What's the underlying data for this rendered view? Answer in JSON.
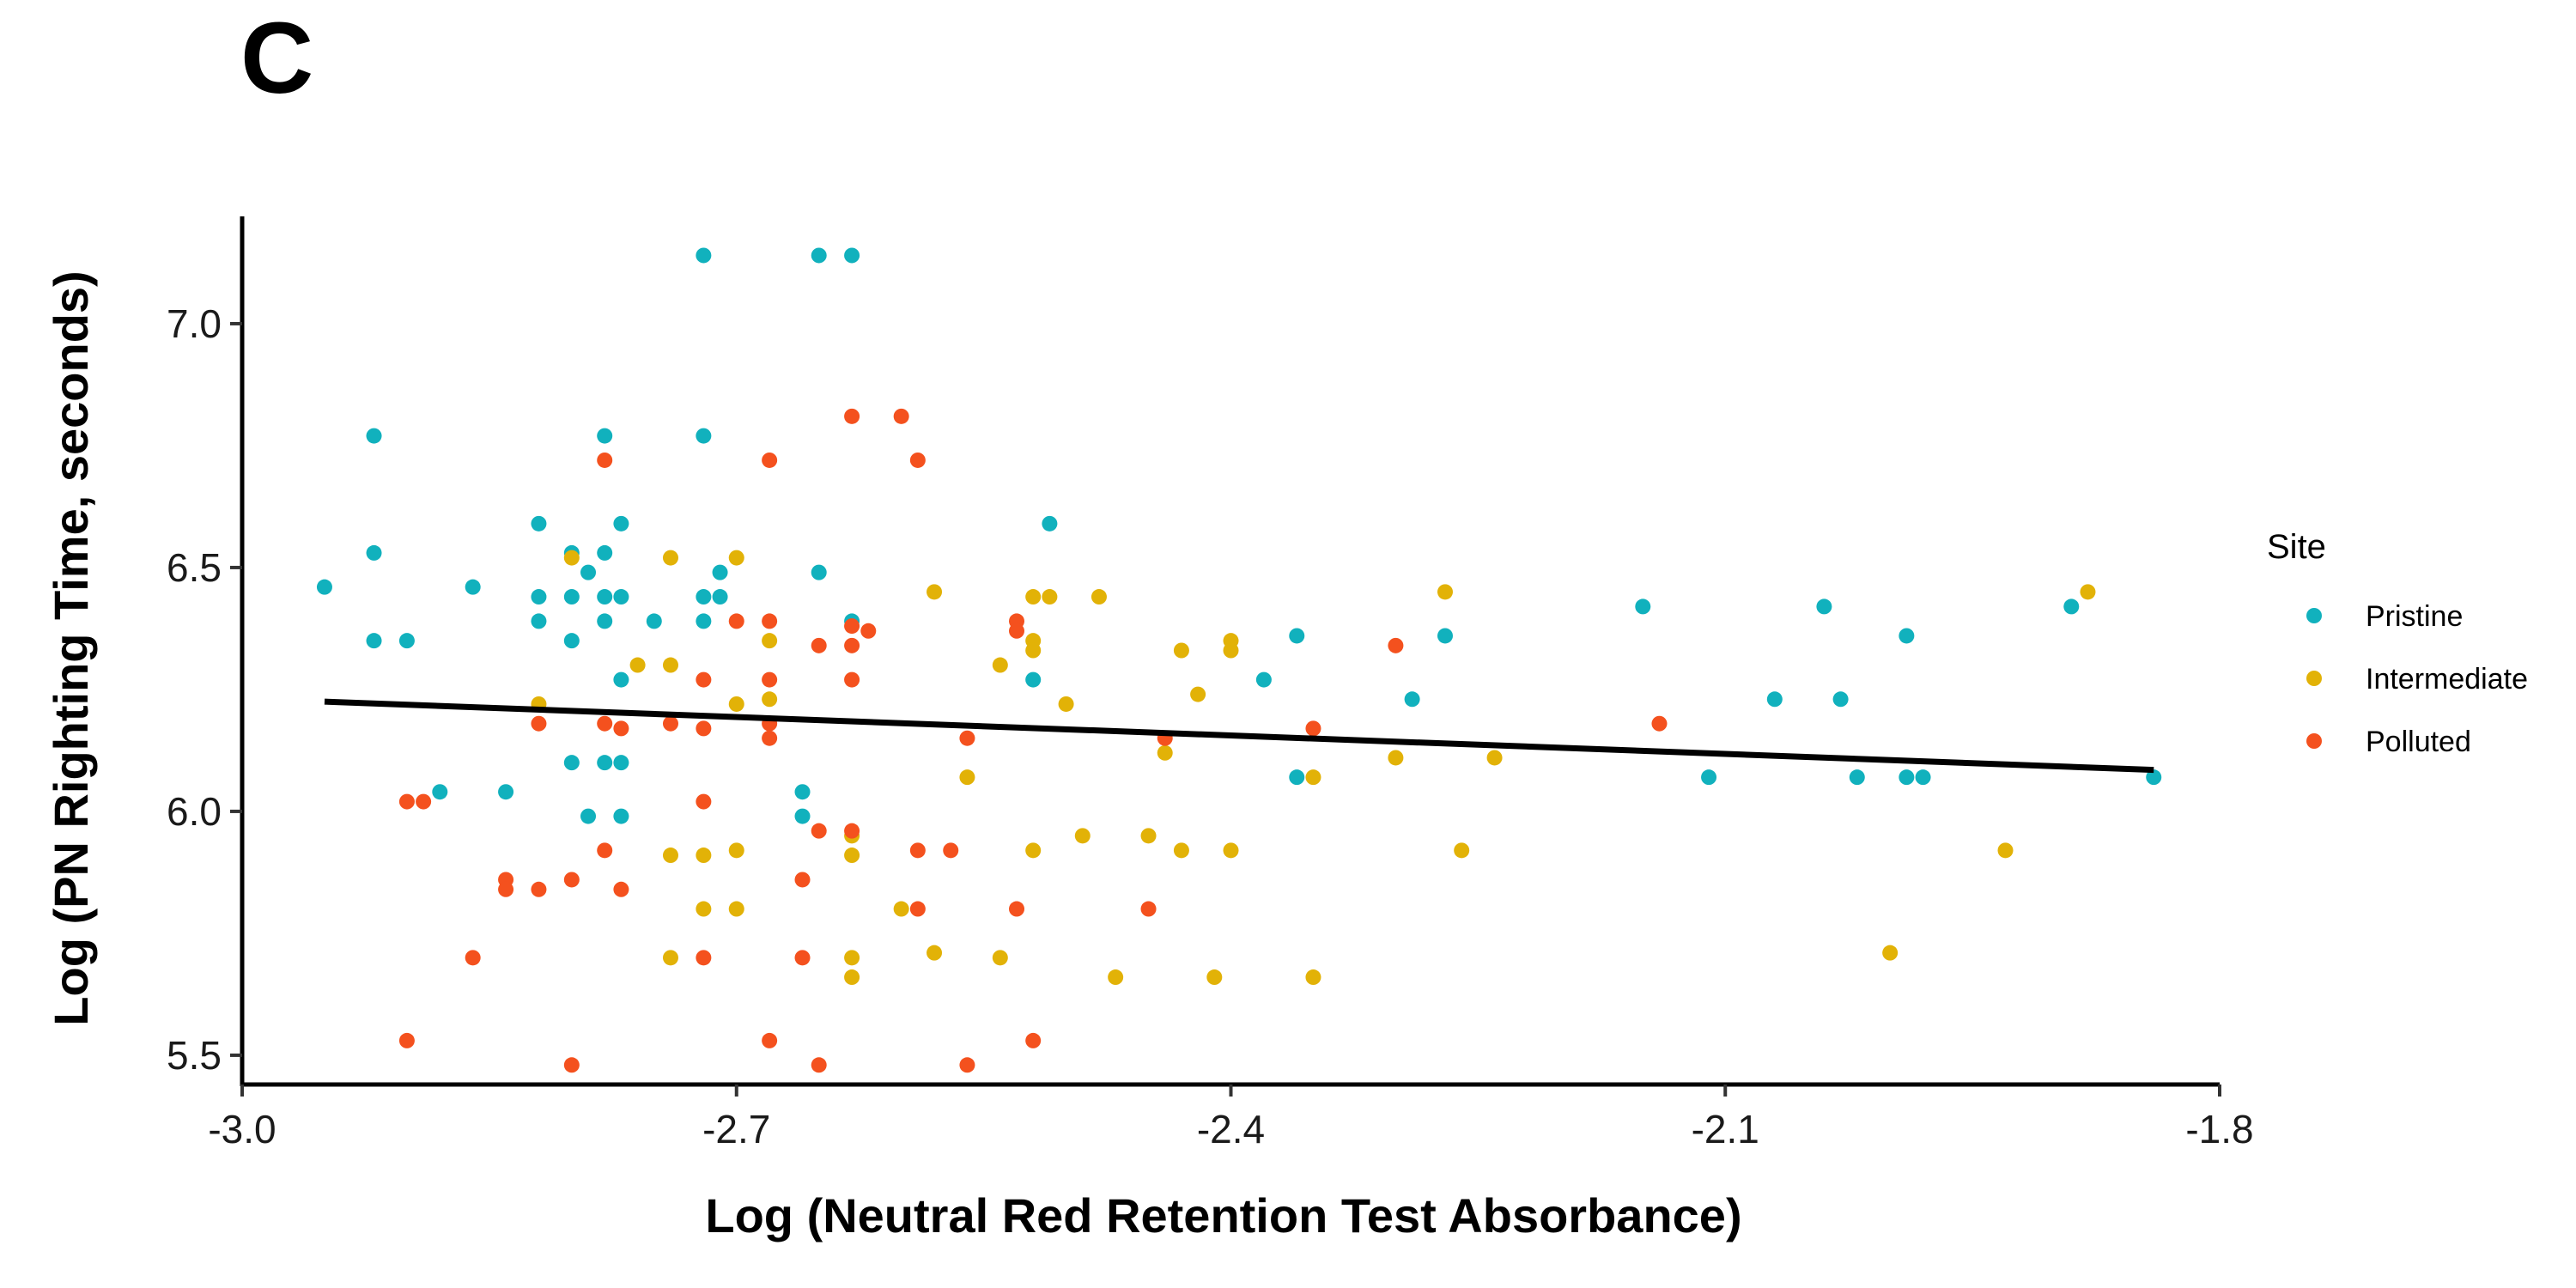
{
  "panel_label": "C",
  "chart_data": {
    "type": "scatter",
    "xlabel": "Log (Neutral Red Retention Test Absorbance)",
    "ylabel": "Log (PN Righting Time, seconds)",
    "xlim": [
      -3.0,
      -1.8
    ],
    "ylim": [
      5.44,
      7.22
    ],
    "x_ticks": [
      -3.0,
      -2.7,
      -2.4,
      -2.1,
      -1.8
    ],
    "x_tick_labels": [
      "-3.0",
      "-2.7",
      "-2.4",
      "-2.1",
      "-1.8"
    ],
    "y_ticks": [
      5.5,
      6.0,
      6.5,
      7.0
    ],
    "y_tick_labels": [
      "5.5",
      "6.0",
      "6.5",
      "7.0"
    ],
    "grid": false,
    "legend": {
      "title": "Site",
      "position": "right"
    },
    "series": [
      {
        "name": "Pristine",
        "color": "#11B1BD",
        "points": [
          [
            -2.95,
            6.46
          ],
          [
            -2.92,
            6.77
          ],
          [
            -2.92,
            6.53
          ],
          [
            -2.92,
            6.35
          ],
          [
            -2.9,
            6.35
          ],
          [
            -2.88,
            6.04
          ],
          [
            -2.86,
            6.46
          ],
          [
            -2.84,
            6.04
          ],
          [
            -2.82,
            6.59
          ],
          [
            -2.82,
            6.44
          ],
          [
            -2.82,
            6.39
          ],
          [
            -2.8,
            6.53
          ],
          [
            -2.8,
            6.44
          ],
          [
            -2.8,
            6.35
          ],
          [
            -2.8,
            6.1
          ],
          [
            -2.79,
            6.49
          ],
          [
            -2.79,
            5.99
          ],
          [
            -2.78,
            6.77
          ],
          [
            -2.78,
            6.53
          ],
          [
            -2.78,
            6.44
          ],
          [
            -2.78,
            6.39
          ],
          [
            -2.78,
            6.1
          ],
          [
            -2.77,
            6.59
          ],
          [
            -2.77,
            6.44
          ],
          [
            -2.77,
            6.27
          ],
          [
            -2.77,
            6.1
          ],
          [
            -2.77,
            5.99
          ],
          [
            -2.75,
            6.39
          ],
          [
            -2.72,
            7.14
          ],
          [
            -2.72,
            6.77
          ],
          [
            -2.72,
            6.44
          ],
          [
            -2.72,
            6.39
          ],
          [
            -2.71,
            6.49
          ],
          [
            -2.71,
            6.44
          ],
          [
            -2.66,
            6.04
          ],
          [
            -2.66,
            5.99
          ],
          [
            -2.65,
            7.14
          ],
          [
            -2.65,
            6.49
          ],
          [
            -2.63,
            7.14
          ],
          [
            -2.63,
            6.39
          ],
          [
            -2.52,
            6.27
          ],
          [
            -2.51,
            6.59
          ],
          [
            -2.38,
            6.27
          ],
          [
            -2.36,
            6.36
          ],
          [
            -2.36,
            6.07
          ],
          [
            -2.29,
            6.23
          ],
          [
            -2.27,
            6.36
          ],
          [
            -2.15,
            6.42
          ],
          [
            -2.11,
            6.07
          ],
          [
            -2.07,
            6.23
          ],
          [
            -2.04,
            6.42
          ],
          [
            -2.03,
            6.23
          ],
          [
            -2.02,
            6.07
          ],
          [
            -1.99,
            6.36
          ],
          [
            -1.99,
            6.07
          ],
          [
            -1.98,
            6.07
          ],
          [
            -1.89,
            6.42
          ],
          [
            -1.84,
            6.07
          ]
        ]
      },
      {
        "name": "Intermediate",
        "color": "#E2B207",
        "points": [
          [
            -2.82,
            6.22
          ],
          [
            -2.8,
            6.52
          ],
          [
            -2.76,
            6.3
          ],
          [
            -2.74,
            6.52
          ],
          [
            -2.74,
            6.3
          ],
          [
            -2.74,
            5.91
          ],
          [
            -2.74,
            5.7
          ],
          [
            -2.72,
            5.91
          ],
          [
            -2.72,
            5.8
          ],
          [
            -2.7,
            6.52
          ],
          [
            -2.7,
            6.22
          ],
          [
            -2.7,
            5.92
          ],
          [
            -2.7,
            5.8
          ],
          [
            -2.68,
            6.35
          ],
          [
            -2.68,
            6.23
          ],
          [
            -2.63,
            5.95
          ],
          [
            -2.63,
            5.91
          ],
          [
            -2.63,
            5.7
          ],
          [
            -2.63,
            5.66
          ],
          [
            -2.6,
            5.8
          ],
          [
            -2.58,
            6.45
          ],
          [
            -2.58,
            5.71
          ],
          [
            -2.56,
            6.07
          ],
          [
            -2.54,
            6.3
          ],
          [
            -2.54,
            5.7
          ],
          [
            -2.52,
            6.44
          ],
          [
            -2.52,
            6.35
          ],
          [
            -2.52,
            6.33
          ],
          [
            -2.52,
            5.92
          ],
          [
            -2.51,
            6.44
          ],
          [
            -2.5,
            6.22
          ],
          [
            -2.49,
            5.95
          ],
          [
            -2.48,
            6.44
          ],
          [
            -2.47,
            5.66
          ],
          [
            -2.45,
            5.95
          ],
          [
            -2.44,
            6.12
          ],
          [
            -2.43,
            6.33
          ],
          [
            -2.43,
            5.92
          ],
          [
            -2.42,
            6.24
          ],
          [
            -2.41,
            5.66
          ],
          [
            -2.4,
            6.35
          ],
          [
            -2.4,
            6.33
          ],
          [
            -2.4,
            5.92
          ],
          [
            -2.35,
            6.07
          ],
          [
            -2.35,
            5.66
          ],
          [
            -2.3,
            6.11
          ],
          [
            -2.27,
            6.45
          ],
          [
            -2.26,
            5.92
          ],
          [
            -2.24,
            6.11
          ],
          [
            -2.0,
            5.71
          ],
          [
            -1.93,
            5.92
          ],
          [
            -1.88,
            6.45
          ]
        ]
      },
      {
        "name": "Polluted",
        "color": "#F4511E",
        "points": [
          [
            -2.9,
            6.02
          ],
          [
            -2.9,
            5.53
          ],
          [
            -2.89,
            6.02
          ],
          [
            -2.86,
            5.7
          ],
          [
            -2.84,
            5.86
          ],
          [
            -2.84,
            5.84
          ],
          [
            -2.82,
            6.18
          ],
          [
            -2.82,
            5.84
          ],
          [
            -2.8,
            5.86
          ],
          [
            -2.8,
            5.48
          ],
          [
            -2.78,
            6.72
          ],
          [
            -2.78,
            6.18
          ],
          [
            -2.78,
            5.92
          ],
          [
            -2.77,
            6.17
          ],
          [
            -2.77,
            5.84
          ],
          [
            -2.74,
            6.18
          ],
          [
            -2.72,
            6.27
          ],
          [
            -2.72,
            6.17
          ],
          [
            -2.72,
            6.02
          ],
          [
            -2.72,
            5.7
          ],
          [
            -2.7,
            6.39
          ],
          [
            -2.68,
            6.72
          ],
          [
            -2.68,
            6.39
          ],
          [
            -2.68,
            6.27
          ],
          [
            -2.68,
            6.18
          ],
          [
            -2.68,
            6.15
          ],
          [
            -2.68,
            5.53
          ],
          [
            -2.66,
            5.86
          ],
          [
            -2.66,
            5.7
          ],
          [
            -2.65,
            6.34
          ],
          [
            -2.65,
            5.96
          ],
          [
            -2.65,
            5.48
          ],
          [
            -2.63,
            6.81
          ],
          [
            -2.63,
            6.38
          ],
          [
            -2.63,
            6.34
          ],
          [
            -2.63,
            6.27
          ],
          [
            -2.63,
            5.96
          ],
          [
            -2.62,
            6.37
          ],
          [
            -2.6,
            6.81
          ],
          [
            -2.59,
            6.72
          ],
          [
            -2.59,
            5.92
          ],
          [
            -2.59,
            5.8
          ],
          [
            -2.57,
            5.92
          ],
          [
            -2.56,
            6.15
          ],
          [
            -2.56,
            5.48
          ],
          [
            -2.53,
            6.39
          ],
          [
            -2.53,
            6.37
          ],
          [
            -2.53,
            5.8
          ],
          [
            -2.52,
            5.53
          ],
          [
            -2.45,
            5.8
          ],
          [
            -2.44,
            6.15
          ],
          [
            -2.35,
            6.17
          ],
          [
            -2.3,
            6.34
          ],
          [
            -2.14,
            6.18
          ]
        ]
      }
    ],
    "trend_line": {
      "x": [
        -2.95,
        -1.84
      ],
      "y": [
        6.225,
        6.085
      ],
      "color": "#000000"
    }
  }
}
